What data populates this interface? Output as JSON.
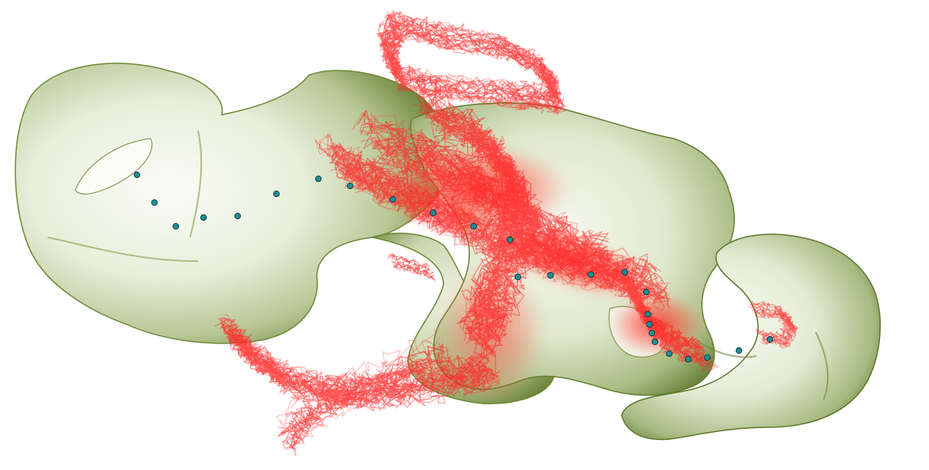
{
  "scene": {
    "background": "#ffffff",
    "surface_color_light": "#f4f6ee",
    "surface_color_mid": "#b9c89a",
    "surface_color_dark": "#5f7a2a",
    "trajectory_color": "#ff2a2a",
    "marker_fill": "#1f8f98",
    "marker_stroke": "#0b3c40"
  }
}
